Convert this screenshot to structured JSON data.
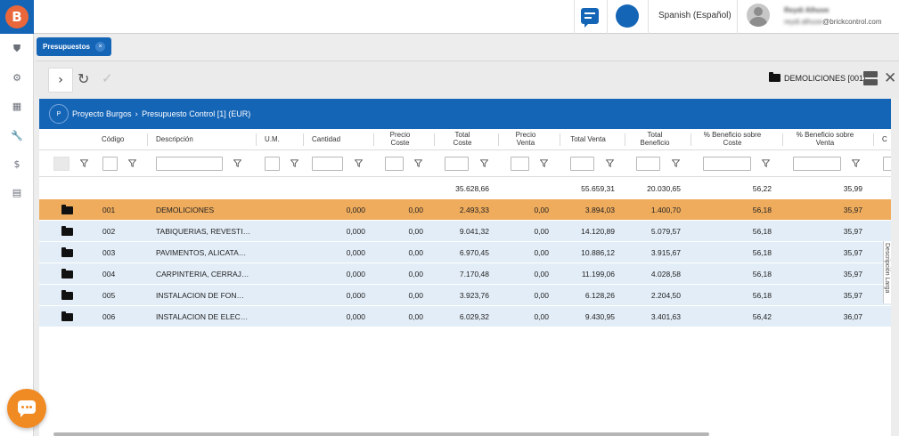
{
  "app": {
    "logo_letter": "B",
    "rail_icons": [
      "shield-icon",
      "gear-icon",
      "building-icon",
      "wrench-icon",
      "dollar-icon",
      "document-icon"
    ]
  },
  "topbar": {
    "language": "Spanish (Español)",
    "user_name": "Reydi Alhuve",
    "user_email_hidden": "reydi.alhuve",
    "user_email_domain": "@brickcontrol.com"
  },
  "tab": {
    "label": "Presupuestos",
    "close": "×"
  },
  "toolbar": {
    "next": "›",
    "refresh": "↻",
    "confirm": "✓",
    "current_item": "DEMOLICIONES [001]",
    "close": "✕"
  },
  "breadcrumb": {
    "badge": "P",
    "project": "Proyecto Burgos",
    "separator": "›",
    "budget": "Presupuesto Control [1] (EUR)"
  },
  "columns": [
    {
      "key": "codigo",
      "label": "Código"
    },
    {
      "key": "descripcion",
      "label": "Descripción"
    },
    {
      "key": "um",
      "label": "U.M."
    },
    {
      "key": "cantidad",
      "label": "Cantidad"
    },
    {
      "key": "precio_coste",
      "label": "Precio Coste"
    },
    {
      "key": "total_coste",
      "label": "Total Coste"
    },
    {
      "key": "precio_venta",
      "label": "Precio Venta"
    },
    {
      "key": "total_venta",
      "label": "Total Venta"
    },
    {
      "key": "total_beneficio",
      "label": "Total Beneficio"
    },
    {
      "key": "pct_coste",
      "label": "% Beneficio sobre Coste"
    },
    {
      "key": "pct_venta",
      "label": "% Beneficio sobre Venta"
    },
    {
      "key": "extra",
      "label": "C"
    }
  ],
  "totals": {
    "total_coste": "35.628,66",
    "total_venta": "55.659,31",
    "total_beneficio": "20.030,65",
    "pct_coste": "56,22",
    "pct_venta": "35,99"
  },
  "rows": [
    {
      "codigo": "001",
      "descripcion": "DEMOLICIONES",
      "cantidad": "0,000",
      "precio_coste": "0,00",
      "total_coste": "2.493,33",
      "precio_venta": "0,00",
      "total_venta": "3.894,03",
      "total_beneficio": "1.400,70",
      "pct_coste": "56,18",
      "pct_venta": "35,97",
      "selected": true
    },
    {
      "codigo": "002",
      "descripcion": "TABIQUERIAS, REVESTI…",
      "cantidad": "0,000",
      "precio_coste": "0,00",
      "total_coste": "9.041,32",
      "precio_venta": "0,00",
      "total_venta": "14.120,89",
      "total_beneficio": "5.079,57",
      "pct_coste": "56,18",
      "pct_venta": "35,97",
      "selected": false
    },
    {
      "codigo": "003",
      "descripcion": "PAVIMENTOS, ALICATA…",
      "cantidad": "0,000",
      "precio_coste": "0,00",
      "total_coste": "6.970,45",
      "precio_venta": "0,00",
      "total_venta": "10.886,12",
      "total_beneficio": "3.915,67",
      "pct_coste": "56,18",
      "pct_venta": "35,97",
      "selected": false
    },
    {
      "codigo": "004",
      "descripcion": "CARPINTERIA, CERRAJ…",
      "cantidad": "0,000",
      "precio_coste": "0,00",
      "total_coste": "7.170,48",
      "precio_venta": "0,00",
      "total_venta": "11.199,06",
      "total_beneficio": "4.028,58",
      "pct_coste": "56,18",
      "pct_venta": "35,97",
      "selected": false
    },
    {
      "codigo": "005",
      "descripcion": "INSTALACION DE FON…",
      "cantidad": "0,000",
      "precio_coste": "0,00",
      "total_coste": "3.923,76",
      "precio_venta": "0,00",
      "total_venta": "6.128,26",
      "total_beneficio": "2.204,50",
      "pct_coste": "56,18",
      "pct_venta": "35,97",
      "selected": false
    },
    {
      "codigo": "006",
      "descripcion": "INSTALACION DE ELEC…",
      "cantidad": "0,000",
      "precio_coste": "0,00",
      "total_coste": "6.029,32",
      "precio_venta": "0,00",
      "total_venta": "9.430,95",
      "total_beneficio": "3.401,63",
      "pct_coste": "56,42",
      "pct_venta": "36,07",
      "selected": false
    }
  ],
  "side_panel": {
    "label": "Descripción Larga"
  },
  "colors": {
    "brand": "#1565b7",
    "selected_row": "#efac5d",
    "row": "#e3edf7",
    "chat": "#f08a23"
  }
}
